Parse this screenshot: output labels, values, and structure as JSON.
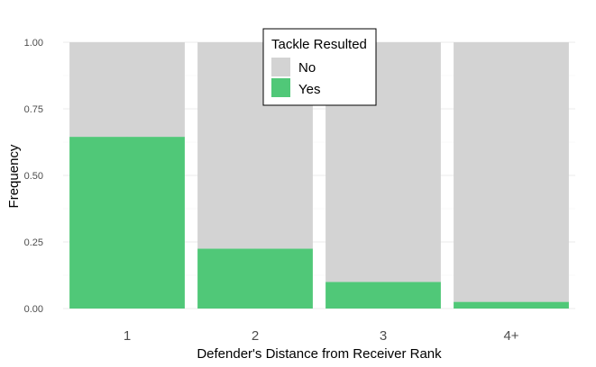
{
  "chart_data": {
    "type": "bar",
    "stacked": true,
    "categories": [
      "1",
      "2",
      "3",
      "4+"
    ],
    "series": [
      {
        "name": "No",
        "values": [
          0.355,
          0.775,
          0.9,
          0.975
        ],
        "color": "#d3d3d3"
      },
      {
        "name": "Yes",
        "values": [
          0.645,
          0.225,
          0.1,
          0.025
        ],
        "color": "#50c878"
      }
    ],
    "ylim": [
      0,
      1
    ],
    "yticks": [
      "0.00",
      "0.25",
      "0.50",
      "0.75",
      "1.00"
    ],
    "xlabel": "Defender's Distance from Receiver Rank",
    "ylabel": "Frequency",
    "legend": {
      "title": "Tackle Resulted",
      "position": "top-center"
    },
    "grid": true
  }
}
